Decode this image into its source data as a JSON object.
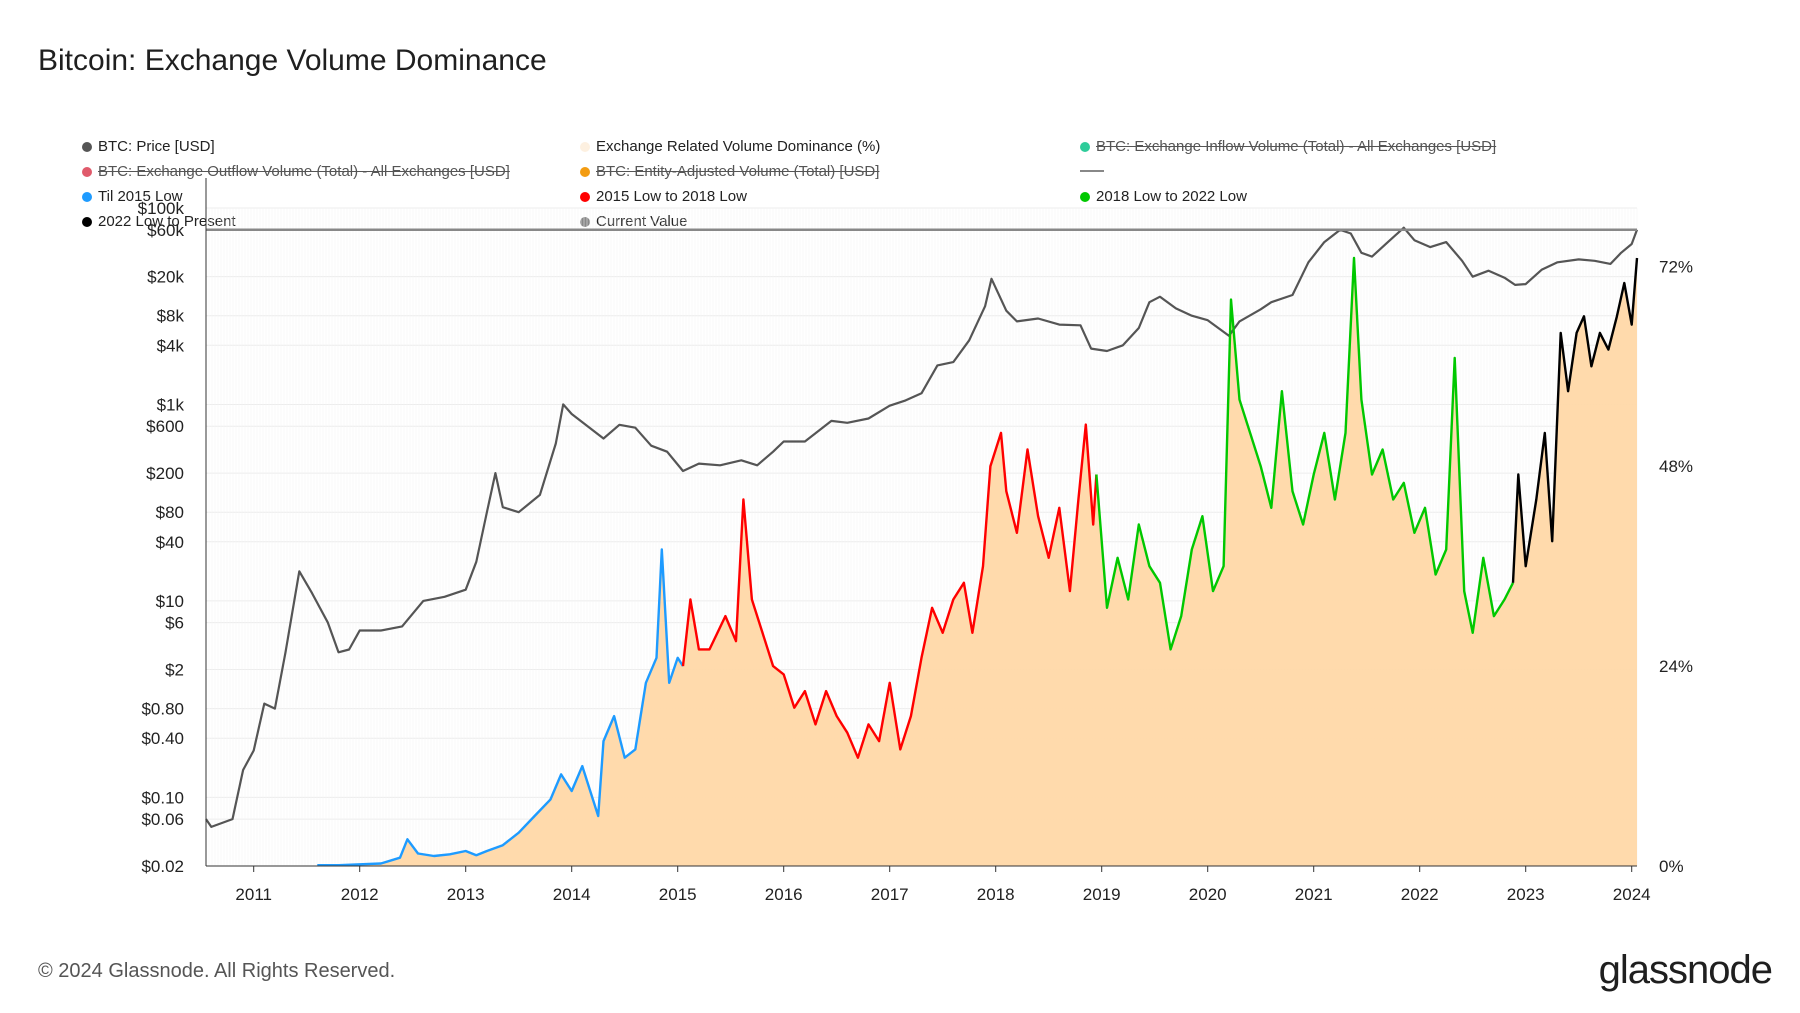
{
  "title": "Bitcoin: Exchange Volume Dominance",
  "footer": "© 2024 Glassnode. All Rights Reserved.",
  "brand": "glassnode",
  "legend": [
    {
      "label": "BTC: Price [USD]",
      "color": "#555555",
      "active": true
    },
    {
      "label": "Exchange Related Volume Dominance (%)",
      "color": "#fdf0e0",
      "active": true
    },
    {
      "label": "BTC: Exchange Inflow Volume (Total) - All Exchanges [USD]",
      "color": "#2ecc9a",
      "active": false
    },
    {
      "label": "BTC: Exchange Outflow Volume (Total) - All Exchanges [USD]",
      "color": "#e05a6b",
      "active": false
    },
    {
      "label": "BTC: Entity-Adjusted Volume (Total) [USD]",
      "color": "#f39c12",
      "active": false
    },
    {
      "label": "",
      "color": "#888888",
      "active": true,
      "dash": true
    },
    {
      "label": "Til 2015 Low",
      "color": "#1e9bff",
      "active": true
    },
    {
      "label": "2015 Low to 2018 Low",
      "color": "#ff0000",
      "active": true
    },
    {
      "label": "2018 Low to 2022 Low",
      "color": "#00c800",
      "active": true
    },
    {
      "label": "2022 Low to Present",
      "color": "#000000",
      "active": true
    },
    {
      "label": "Current Value",
      "color": "#888888",
      "active": true
    }
  ],
  "chart_data": {
    "type": "line",
    "x_ticks": [
      "2011",
      "2012",
      "2013",
      "2014",
      "2015",
      "2016",
      "2017",
      "2018",
      "2019",
      "2020",
      "2021",
      "2022",
      "2023",
      "2024"
    ],
    "y_left_ticks": [
      "$100k",
      "$60k",
      "$20k",
      "$8k",
      "$4k",
      "$1k",
      "$600",
      "$200",
      "$80",
      "$40",
      "$10",
      "$6",
      "$2",
      "$0.80",
      "$0.40",
      "$0.10",
      "$0.06",
      "$0.02"
    ],
    "y_left_tick_values": [
      100000,
      60000,
      20000,
      8000,
      4000,
      1000,
      600,
      200,
      80,
      40,
      10,
      6,
      2,
      0.8,
      0.4,
      0.1,
      0.06,
      0.02
    ],
    "y_left_range": [
      0.02,
      100000
    ],
    "y_left_scale": "log",
    "y_right_ticks": [
      "72%",
      "48%",
      "24%",
      "0%"
    ],
    "y_right_tick_values": [
      72,
      48,
      24,
      0
    ],
    "y_right_range": [
      0,
      79
    ],
    "x_range": [
      2010.55,
      2024.05
    ],
    "current_value_price": 60000,
    "btc_price": {
      "color": "#555555",
      "points": [
        [
          2010.55,
          0.06
        ],
        [
          2010.6,
          0.05
        ],
        [
          2010.8,
          0.06
        ],
        [
          2010.9,
          0.19
        ],
        [
          2011.0,
          0.3
        ],
        [
          2011.1,
          0.9
        ],
        [
          2011.2,
          0.8
        ],
        [
          2011.3,
          3
        ],
        [
          2011.43,
          20
        ],
        [
          2011.55,
          12
        ],
        [
          2011.7,
          6
        ],
        [
          2011.8,
          3
        ],
        [
          2011.9,
          3.2
        ],
        [
          2012.0,
          5
        ],
        [
          2012.2,
          5
        ],
        [
          2012.4,
          5.5
        ],
        [
          2012.6,
          10
        ],
        [
          2012.8,
          11
        ],
        [
          2013.0,
          13
        ],
        [
          2013.1,
          25
        ],
        [
          2013.2,
          80
        ],
        [
          2013.28,
          200
        ],
        [
          2013.35,
          90
        ],
        [
          2013.5,
          80
        ],
        [
          2013.7,
          120
        ],
        [
          2013.85,
          400
        ],
        [
          2013.92,
          1000
        ],
        [
          2014.0,
          800
        ],
        [
          2014.15,
          600
        ],
        [
          2014.3,
          450
        ],
        [
          2014.45,
          620
        ],
        [
          2014.6,
          580
        ],
        [
          2014.75,
          380
        ],
        [
          2014.9,
          330
        ],
        [
          2015.05,
          210
        ],
        [
          2015.2,
          250
        ],
        [
          2015.4,
          240
        ],
        [
          2015.6,
          270
        ],
        [
          2015.75,
          240
        ],
        [
          2015.9,
          330
        ],
        [
          2016.0,
          420
        ],
        [
          2016.2,
          420
        ],
        [
          2016.45,
          680
        ],
        [
          2016.6,
          650
        ],
        [
          2016.8,
          720
        ],
        [
          2017.0,
          970
        ],
        [
          2017.15,
          1100
        ],
        [
          2017.3,
          1300
        ],
        [
          2017.45,
          2500
        ],
        [
          2017.6,
          2700
        ],
        [
          2017.75,
          4500
        ],
        [
          2017.9,
          10000
        ],
        [
          2017.96,
          19000
        ],
        [
          2018.1,
          9000
        ],
        [
          2018.2,
          7000
        ],
        [
          2018.4,
          7500
        ],
        [
          2018.6,
          6500
        ],
        [
          2018.8,
          6400
        ],
        [
          2018.9,
          3700
        ],
        [
          2019.05,
          3500
        ],
        [
          2019.2,
          4000
        ],
        [
          2019.35,
          6000
        ],
        [
          2019.45,
          11000
        ],
        [
          2019.55,
          12500
        ],
        [
          2019.7,
          9500
        ],
        [
          2019.85,
          8000
        ],
        [
          2020.0,
          7200
        ],
        [
          2020.2,
          5000
        ],
        [
          2020.3,
          7000
        ],
        [
          2020.5,
          9300
        ],
        [
          2020.6,
          11000
        ],
        [
          2020.8,
          13000
        ],
        [
          2020.95,
          28000
        ],
        [
          2021.1,
          45000
        ],
        [
          2021.25,
          60000
        ],
        [
          2021.35,
          55000
        ],
        [
          2021.45,
          35000
        ],
        [
          2021.55,
          32000
        ],
        [
          2021.7,
          45000
        ],
        [
          2021.85,
          63000
        ],
        [
          2021.95,
          47000
        ],
        [
          2022.1,
          40000
        ],
        [
          2022.25,
          45000
        ],
        [
          2022.4,
          29000
        ],
        [
          2022.5,
          20000
        ],
        [
          2022.65,
          23000
        ],
        [
          2022.8,
          19500
        ],
        [
          2022.9,
          16500
        ],
        [
          2023.0,
          16800
        ],
        [
          2023.15,
          23500
        ],
        [
          2023.3,
          28000
        ],
        [
          2023.5,
          30000
        ],
        [
          2023.65,
          29000
        ],
        [
          2023.8,
          27000
        ],
        [
          2023.9,
          35000
        ],
        [
          2024.0,
          43000
        ],
        [
          2024.05,
          60000
        ]
      ]
    },
    "dominance": {
      "color": "#ff9d2e",
      "fill": "#ffd8a8",
      "segments": [
        {
          "name": "Til 2015 Low",
          "color": "#1e9bff",
          "points": [
            [
              2011.6,
              0.1
            ],
            [
              2011.8,
              0.1
            ],
            [
              2012.0,
              0.2
            ],
            [
              2012.2,
              0.3
            ],
            [
              2012.38,
              1.0
            ],
            [
              2012.45,
              3.2
            ],
            [
              2012.55,
              1.5
            ],
            [
              2012.7,
              1.2
            ],
            [
              2012.85,
              1.4
            ],
            [
              2013.0,
              1.8
            ],
            [
              2013.1,
              1.3
            ],
            [
              2013.2,
              1.8
            ],
            [
              2013.35,
              2.5
            ],
            [
              2013.5,
              4
            ],
            [
              2013.65,
              6
            ],
            [
              2013.8,
              8
            ],
            [
              2013.9,
              11
            ],
            [
              2014.0,
              9
            ],
            [
              2014.1,
              12
            ],
            [
              2014.2,
              8
            ],
            [
              2014.25,
              6
            ],
            [
              2014.3,
              15
            ],
            [
              2014.4,
              18
            ],
            [
              2014.5,
              13
            ],
            [
              2014.6,
              14
            ],
            [
              2014.7,
              22
            ],
            [
              2014.8,
              25
            ],
            [
              2014.85,
              38
            ],
            [
              2014.92,
              22
            ],
            [
              2015.0,
              25
            ],
            [
              2015.05,
              24
            ]
          ]
        },
        {
          "name": "2015 Low to 2018 Low",
          "color": "#ff0000",
          "points": [
            [
              2015.05,
              24
            ],
            [
              2015.12,
              32
            ],
            [
              2015.2,
              26
            ],
            [
              2015.3,
              26
            ],
            [
              2015.45,
              30
            ],
            [
              2015.55,
              27
            ],
            [
              2015.62,
              44
            ],
            [
              2015.7,
              32
            ],
            [
              2015.8,
              28
            ],
            [
              2015.9,
              24
            ],
            [
              2016.0,
              23
            ],
            [
              2016.1,
              19
            ],
            [
              2016.2,
              21
            ],
            [
              2016.3,
              17
            ],
            [
              2016.4,
              21
            ],
            [
              2016.5,
              18
            ],
            [
              2016.6,
              16
            ],
            [
              2016.7,
              13
            ],
            [
              2016.8,
              17
            ],
            [
              2016.9,
              15
            ],
            [
              2017.0,
              22
            ],
            [
              2017.1,
              14
            ],
            [
              2017.2,
              18
            ],
            [
              2017.3,
              25
            ],
            [
              2017.4,
              31
            ],
            [
              2017.5,
              28
            ],
            [
              2017.6,
              32
            ],
            [
              2017.7,
              34
            ],
            [
              2017.78,
              28
            ],
            [
              2017.88,
              36
            ],
            [
              2017.95,
              48
            ],
            [
              2018.05,
              52
            ],
            [
              2018.1,
              45
            ],
            [
              2018.2,
              40
            ],
            [
              2018.3,
              50
            ],
            [
              2018.4,
              42
            ],
            [
              2018.5,
              37
            ],
            [
              2018.6,
              43
            ],
            [
              2018.7,
              33
            ],
            [
              2018.78,
              44
            ],
            [
              2018.85,
              53
            ],
            [
              2018.92,
              41
            ],
            [
              2018.95,
              47
            ]
          ]
        },
        {
          "name": "2018 Low to 2022 Low",
          "color": "#00c800",
          "points": [
            [
              2018.95,
              47
            ],
            [
              2019.05,
              31
            ],
            [
              2019.15,
              37
            ],
            [
              2019.25,
              32
            ],
            [
              2019.35,
              41
            ],
            [
              2019.45,
              36
            ],
            [
              2019.55,
              34
            ],
            [
              2019.65,
              26
            ],
            [
              2019.75,
              30
            ],
            [
              2019.85,
              38
            ],
            [
              2019.95,
              42
            ],
            [
              2020.05,
              33
            ],
            [
              2020.15,
              36
            ],
            [
              2020.22,
              68
            ],
            [
              2020.3,
              56
            ],
            [
              2020.4,
              52
            ],
            [
              2020.5,
              48
            ],
            [
              2020.6,
              43
            ],
            [
              2020.7,
              57
            ],
            [
              2020.8,
              45
            ],
            [
              2020.9,
              41
            ],
            [
              2021.0,
              47
            ],
            [
              2021.1,
              52
            ],
            [
              2021.2,
              44
            ],
            [
              2021.3,
              52
            ],
            [
              2021.38,
              73
            ],
            [
              2021.45,
              56
            ],
            [
              2021.55,
              47
            ],
            [
              2021.65,
              50
            ],
            [
              2021.75,
              44
            ],
            [
              2021.85,
              46
            ],
            [
              2021.95,
              40
            ],
            [
              2022.05,
              43
            ],
            [
              2022.15,
              35
            ],
            [
              2022.25,
              38
            ],
            [
              2022.33,
              61
            ],
            [
              2022.42,
              33
            ],
            [
              2022.5,
              28
            ],
            [
              2022.6,
              37
            ],
            [
              2022.7,
              30
            ],
            [
              2022.8,
              32
            ],
            [
              2022.88,
              34
            ]
          ]
        },
        {
          "name": "2022 Low to Present",
          "color": "#000000",
          "points": [
            [
              2022.88,
              34
            ],
            [
              2022.93,
              47
            ],
            [
              2023.0,
              36
            ],
            [
              2023.05,
              40
            ],
            [
              2023.1,
              44
            ],
            [
              2023.18,
              52
            ],
            [
              2023.25,
              39
            ],
            [
              2023.33,
              64
            ],
            [
              2023.4,
              57
            ],
            [
              2023.48,
              64
            ],
            [
              2023.55,
              66
            ],
            [
              2023.62,
              60
            ],
            [
              2023.7,
              64
            ],
            [
              2023.78,
              62
            ],
            [
              2023.86,
              66
            ],
            [
              2023.93,
              70
            ],
            [
              2024.0,
              65
            ],
            [
              2024.05,
              73
            ]
          ]
        }
      ]
    }
  }
}
